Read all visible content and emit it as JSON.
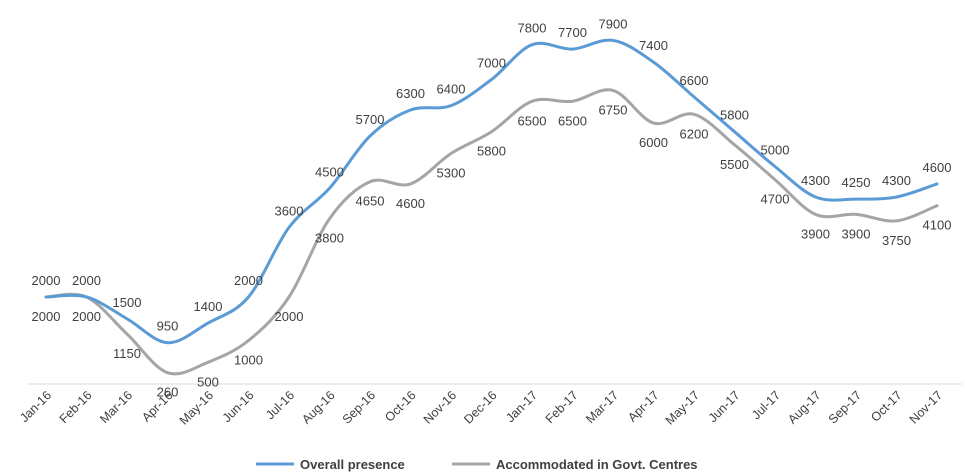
{
  "chart_data": {
    "type": "line",
    "title": "",
    "xlabel": "",
    "ylabel": "",
    "ylim": [
      0,
      8800
    ],
    "grid": false,
    "legend_position": "bottom",
    "categories": [
      "Jan-16",
      "Feb-16",
      "Mar-16",
      "Apr-16",
      "May-16",
      "Jun-16",
      "Jul-16",
      "Aug-16",
      "Sep-16",
      "Oct-16",
      "Nov-16",
      "Dec-16",
      "Jan-17",
      "Feb-17",
      "Mar-17",
      "Apr-17",
      "May-17",
      "Jun-17",
      "Jul-17",
      "Aug-17",
      "Sep-17",
      "Oct-17",
      "Nov-17"
    ],
    "series": [
      {
        "name": "Overall presence",
        "color": "#5b9bd5",
        "values": [
          2000,
          2000,
          1500,
          950,
          1400,
          2000,
          3600,
          4500,
          5700,
          6300,
          6400,
          7000,
          7800,
          7700,
          7900,
          7400,
          6600,
          5800,
          5000,
          4300,
          4250,
          4300,
          4600
        ],
        "labels": [
          "2000",
          "2000",
          "1500",
          "950",
          "1400",
          "2000",
          "3600",
          "4500",
          "5700",
          "6300",
          "6400",
          "7000",
          "7800",
          "7700",
          "7900",
          "7400",
          "6600",
          "5800",
          "5000",
          "4300",
          "4250",
          "4300",
          "4600"
        ]
      },
      {
        "name": "Accommodated in Govt. Centres",
        "color": "#a5a5a5",
        "values": [
          2000,
          2000,
          1150,
          260,
          500,
          1000,
          2000,
          3800,
          4650,
          4600,
          5300,
          5800,
          6500,
          6500,
          6750,
          6000,
          6200,
          5500,
          4700,
          3900,
          3900,
          3750,
          4100
        ],
        "labels": [
          "2000",
          "2000",
          "1150",
          "260",
          "500",
          "1000",
          "2000",
          "3800",
          "4650",
          "4600",
          "5300",
          "5800",
          "6500",
          "6500",
          "6750",
          "6000",
          "6200",
          "5500",
          "4700",
          "3900",
          "3900",
          "3750",
          "4100"
        ]
      }
    ]
  }
}
